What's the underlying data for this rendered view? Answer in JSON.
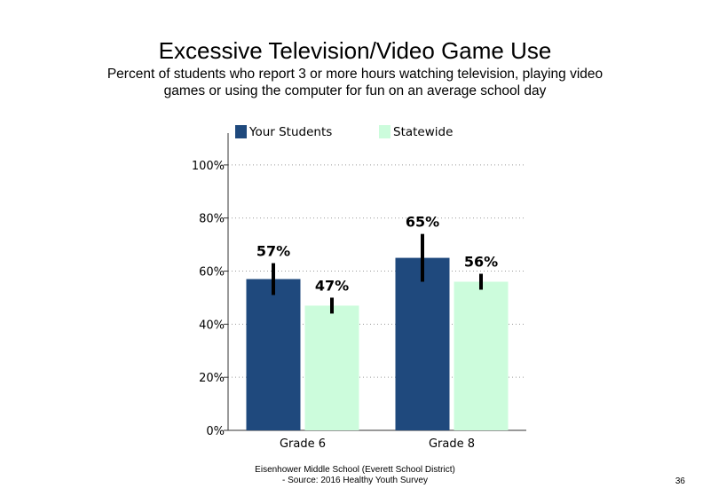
{
  "chart_data": {
    "type": "bar",
    "title": "Excessive Television/Video Game Use",
    "subtitle": "Percent of students who report 3 or more hours watching television, playing video games or using the computer for fun on an average school day",
    "categories": [
      "Grade 6",
      "Grade 8"
    ],
    "series": [
      {
        "name": "Your Students",
        "color": "#1f497d",
        "values": [
          57,
          65
        ],
        "labels": [
          "57%",
          "65%"
        ],
        "error": [
          [
            51,
            63
          ],
          [
            56,
            74
          ]
        ]
      },
      {
        "name": "Statewide",
        "color": "#ccfcdc",
        "values": [
          47,
          56
        ],
        "labels": [
          "47%",
          "56%"
        ],
        "error": [
          [
            44,
            50
          ],
          [
            53,
            59
          ]
        ]
      }
    ],
    "yticks": [
      "0%",
      "20%",
      "40%",
      "60%",
      "80%",
      "100%"
    ],
    "ylim": [
      0,
      100
    ],
    "grid": "dotted horizontal",
    "legend_position": "top"
  },
  "footer": {
    "line1": "Eisenhower Middle School (Everett School District)",
    "line2": "- Source: 2016 Healthy Youth Survey",
    "page_number": "36"
  }
}
